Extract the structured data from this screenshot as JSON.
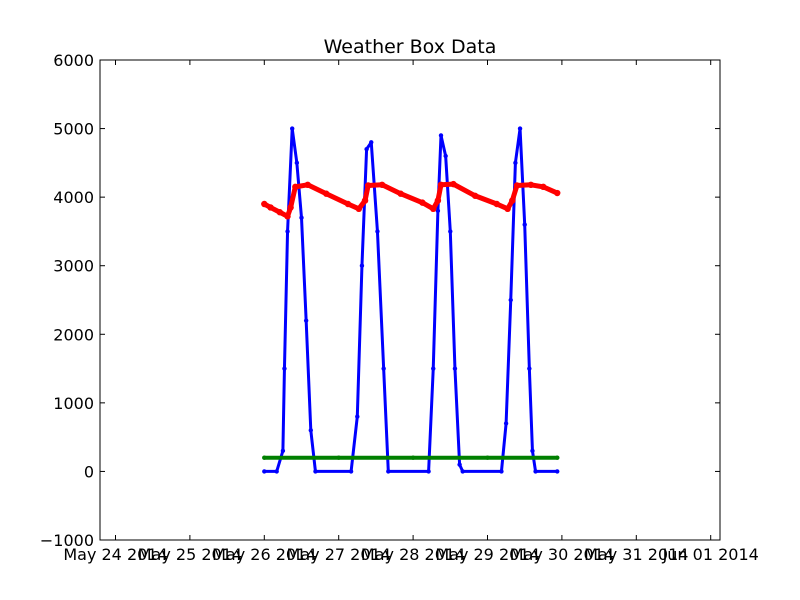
{
  "chart_data": {
    "type": "scatter",
    "title": "Weather Box Data",
    "xlabel": "",
    "ylabel": "",
    "x_axis_type": "date",
    "xlim": [
      "2014-05-23T19:00",
      "2014-06-01T03:00"
    ],
    "ylim": [
      -1000,
      6000
    ],
    "x_ticks": [
      "2014-05-24",
      "2014-05-25",
      "2014-05-26",
      "2014-05-27",
      "2014-05-28",
      "2014-05-29",
      "2014-05-30",
      "2014-05-31",
      "2014-06-01"
    ],
    "x_tick_labels": [
      "May 24 2014",
      "May 25 2014",
      "May 26 2014",
      "May 27 2014",
      "May 28 2014",
      "May 29 2014",
      "May 30 2014",
      "May 31 2014",
      "Jun 01 2014"
    ],
    "y_ticks": [
      -1000,
      0,
      1000,
      2000,
      3000,
      4000,
      5000,
      6000
    ],
    "y_tick_labels": [
      "−1000",
      "0",
      "1000",
      "2000",
      "3000",
      "4000",
      "5000",
      "6000"
    ],
    "grid": false,
    "legend": "none",
    "series": [
      {
        "color": "#0000ff",
        "points": [
          [
            "2014-05-26T00:00",
            0
          ],
          [
            "2014-05-26T04:00",
            0
          ],
          [
            "2014-05-26T06:00",
            300
          ],
          [
            "2014-05-26T06:30",
            1500
          ],
          [
            "2014-05-26T07:30",
            3500
          ],
          [
            "2014-05-26T09:00",
            5000
          ],
          [
            "2014-05-26T10:30",
            4500
          ],
          [
            "2014-05-26T12:00",
            3700
          ],
          [
            "2014-05-26T13:30",
            2200
          ],
          [
            "2014-05-26T15:00",
            600
          ],
          [
            "2014-05-26T16:30",
            0
          ],
          [
            "2014-05-27T04:00",
            0
          ],
          [
            "2014-05-27T06:00",
            800
          ],
          [
            "2014-05-27T07:30",
            3000
          ],
          [
            "2014-05-27T09:00",
            4700
          ],
          [
            "2014-05-27T10:30",
            4800
          ],
          [
            "2014-05-27T12:30",
            3500
          ],
          [
            "2014-05-27T14:30",
            1500
          ],
          [
            "2014-05-27T16:00",
            0
          ],
          [
            "2014-05-28T05:00",
            0
          ],
          [
            "2014-05-28T06:30",
            1500
          ],
          [
            "2014-05-28T08:00",
            3800
          ],
          [
            "2014-05-28T09:00",
            4900
          ],
          [
            "2014-05-28T10:30",
            4600
          ],
          [
            "2014-05-28T12:00",
            3500
          ],
          [
            "2014-05-28T13:30",
            1500
          ],
          [
            "2014-05-28T15:00",
            100
          ],
          [
            "2014-05-28T16:00",
            0
          ],
          [
            "2014-05-29T04:30",
            0
          ],
          [
            "2014-05-29T06:00",
            700
          ],
          [
            "2014-05-29T07:30",
            2500
          ],
          [
            "2014-05-29T09:00",
            4500
          ],
          [
            "2014-05-29T10:30",
            5000
          ],
          [
            "2014-05-29T12:00",
            3600
          ],
          [
            "2014-05-29T13:30",
            1500
          ],
          [
            "2014-05-29T14:30",
            300
          ],
          [
            "2014-05-29T15:30",
            0
          ],
          [
            "2014-05-29T22:30",
            0
          ]
        ]
      },
      {
        "color": "#ff0000",
        "points": [
          [
            "2014-05-26T00:00",
            3900
          ],
          [
            "2014-05-26T02:00",
            3850
          ],
          [
            "2014-05-26T05:00",
            3780
          ],
          [
            "2014-05-26T07:30",
            3720
          ],
          [
            "2014-05-26T08:30",
            3850
          ],
          [
            "2014-05-26T10:00",
            4150
          ],
          [
            "2014-05-26T14:00",
            4180
          ],
          [
            "2014-05-26T20:00",
            4050
          ],
          [
            "2014-05-27T03:00",
            3900
          ],
          [
            "2014-05-27T06:30",
            3830
          ],
          [
            "2014-05-27T08:30",
            3950
          ],
          [
            "2014-05-27T09:30",
            4170
          ],
          [
            "2014-05-27T14:00",
            4180
          ],
          [
            "2014-05-27T20:00",
            4050
          ],
          [
            "2014-05-28T03:00",
            3920
          ],
          [
            "2014-05-28T06:30",
            3830
          ],
          [
            "2014-05-28T08:00",
            3950
          ],
          [
            "2014-05-28T09:00",
            4180
          ],
          [
            "2014-05-28T13:00",
            4190
          ],
          [
            "2014-05-28T20:00",
            4020
          ],
          [
            "2014-05-29T03:00",
            3900
          ],
          [
            "2014-05-29T06:30",
            3830
          ],
          [
            "2014-05-29T08:00",
            3950
          ],
          [
            "2014-05-29T09:30",
            4170
          ],
          [
            "2014-05-29T14:00",
            4180
          ],
          [
            "2014-05-29T18:00",
            4150
          ],
          [
            "2014-05-29T22:30",
            4060
          ]
        ]
      },
      {
        "color": "#008000",
        "points": [
          [
            "2014-05-26T00:00",
            200
          ],
          [
            "2014-05-27T00:00",
            200
          ],
          [
            "2014-05-28T00:00",
            200
          ],
          [
            "2014-05-29T00:00",
            200
          ],
          [
            "2014-05-29T22:30",
            200
          ]
        ]
      }
    ]
  }
}
